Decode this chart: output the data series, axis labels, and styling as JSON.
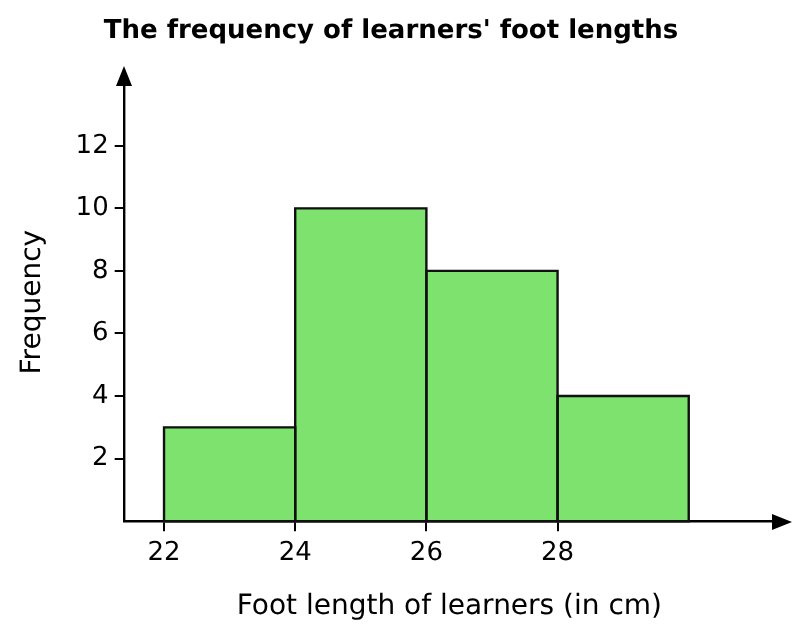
{
  "chart_data": {
    "type": "histogram",
    "title": "The frequency of learners' foot lengths",
    "xlabel": "Foot length of learners (in cm)",
    "ylabel": "Frequency",
    "bins": [
      22,
      24,
      26,
      28,
      30
    ],
    "values": [
      3,
      10,
      8,
      4
    ],
    "color": "#7ee36e",
    "xlim": [
      21.4,
      31.3
    ],
    "ylim": [
      0,
      14
    ],
    "xticks": [
      22,
      24,
      26,
      28
    ],
    "yticks": [
      2,
      4,
      6,
      8,
      10,
      12
    ]
  }
}
